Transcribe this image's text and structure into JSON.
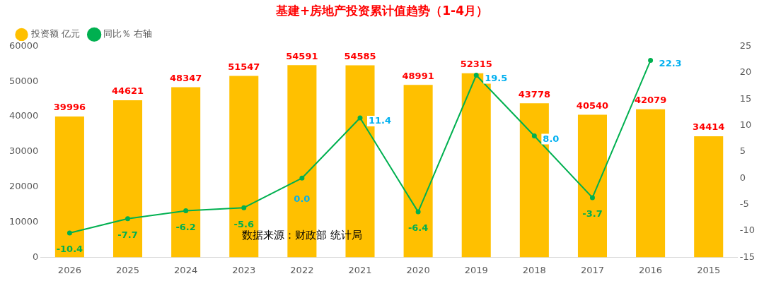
{
  "chart_data": {
    "type": "bar",
    "title": "基建+房地产投资累计值趋势（1-4月）",
    "categories": [
      "2026",
      "2025",
      "2024",
      "2023",
      "2022",
      "2021",
      "2020",
      "2019",
      "2018",
      "2017",
      "2016",
      "2015"
    ],
    "series": [
      {
        "name": "投资额 亿元",
        "color": "#ffc000",
        "values": [
          39996,
          44621,
          48347,
          51547,
          54591,
          54585,
          48991,
          52315,
          43778,
          40540,
          42079,
          34414
        ]
      },
      {
        "name": "同比％ 右轴",
        "type": "line",
        "axis": "y2",
        "color": "#00b050",
        "values": [
          -10.4,
          -7.7,
          -6.2,
          -5.6,
          0.0,
          11.4,
          -6.4,
          19.5,
          8.0,
          -3.7,
          22.3,
          null
        ],
        "value_labels": [
          "-10.4",
          "-7.7",
          "-6.2",
          "-5.6",
          "0.0",
          "11.4",
          "-6.4",
          "19.5",
          "8.0",
          "-3.7",
          "22.3",
          null
        ]
      }
    ],
    "ylim": [
      0,
      60000
    ],
    "yticks": [
      0,
      10000,
      20000,
      30000,
      40000,
      50000,
      60000
    ],
    "y2lim": [
      -15,
      25
    ],
    "y2ticks": [
      -15,
      -10,
      -5,
      0,
      5,
      10,
      15,
      20,
      25
    ],
    "data_labels": true,
    "grid": false,
    "legend": "top left",
    "marker": "circle",
    "line_style": "solid",
    "annotations": [
      "数据来源：财政部 统计局"
    ]
  }
}
